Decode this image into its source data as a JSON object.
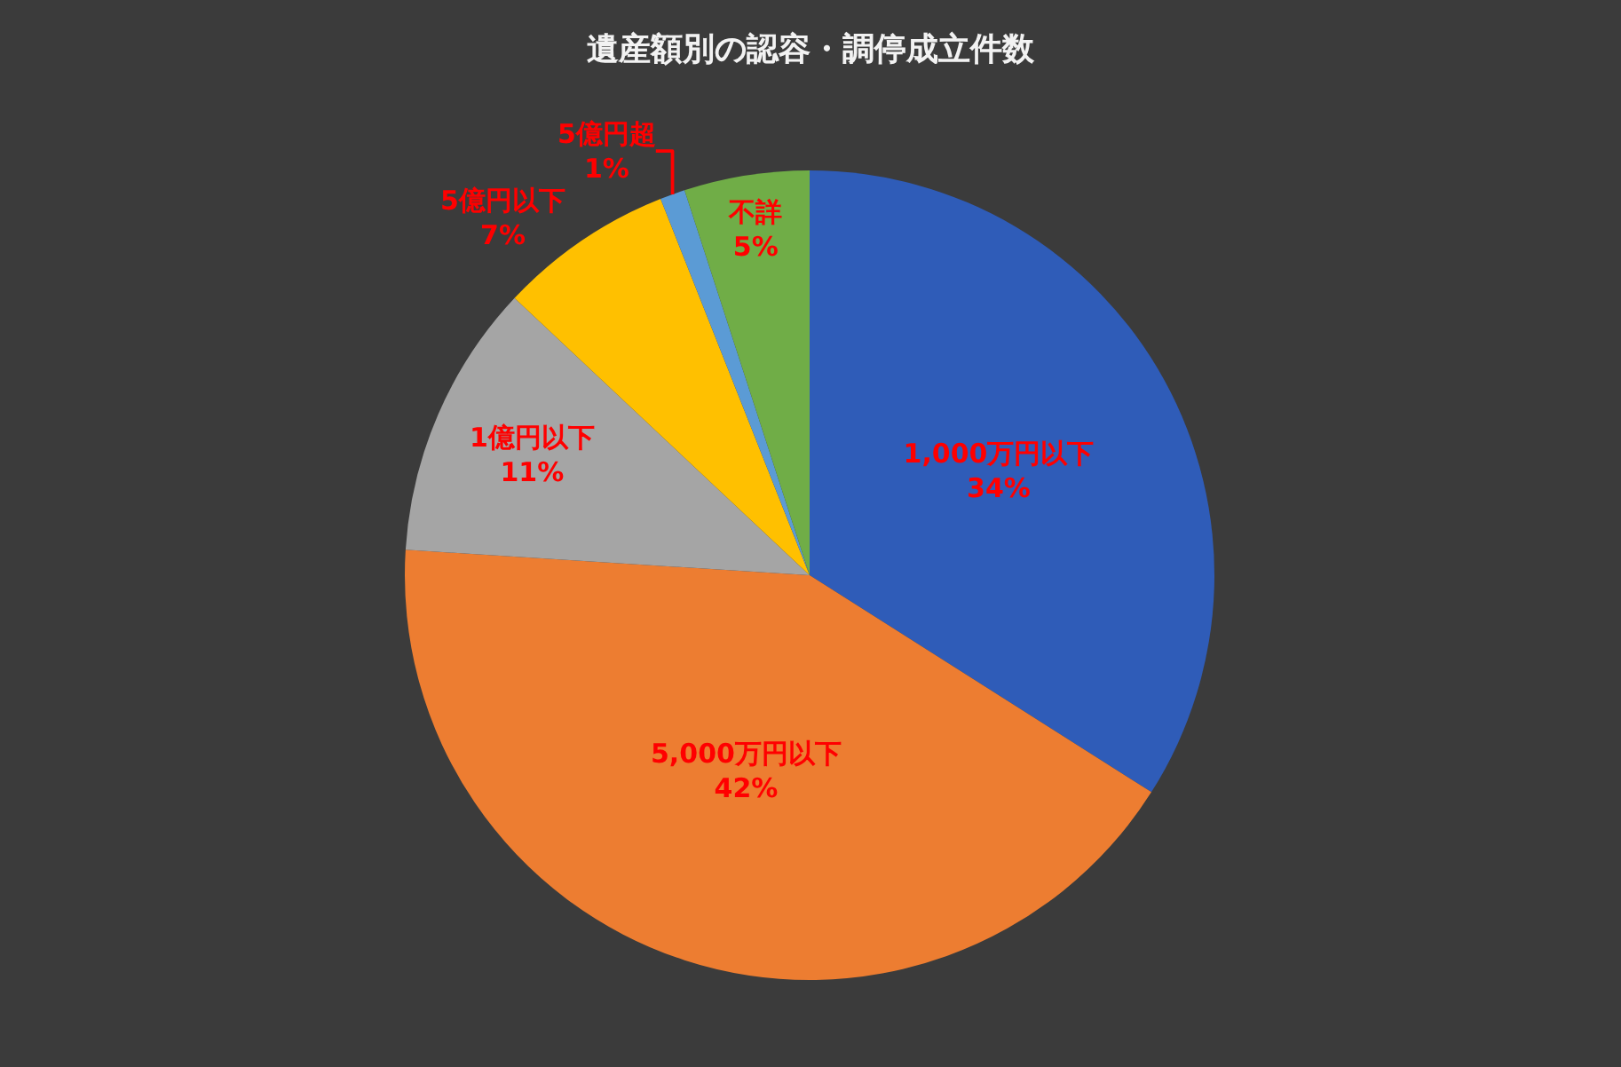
{
  "chart_data": {
    "type": "pie",
    "title": "遺産額別の認容・調停成立件数",
    "categories": [
      "1,000万円以下",
      "5,000万円以下",
      "1億円以下",
      "5億円以下",
      "5億円超",
      "不詳"
    ],
    "values": [
      34,
      42,
      11,
      7,
      1,
      5
    ],
    "value_labels": [
      "34%",
      "42%",
      "11%",
      "7%",
      "1%",
      "5%"
    ],
    "colors": [
      "#2f5cb8",
      "#ed7d31",
      "#a5a5a5",
      "#ffc000",
      "#5b9bd5",
      "#70ad47"
    ],
    "legend": false
  }
}
